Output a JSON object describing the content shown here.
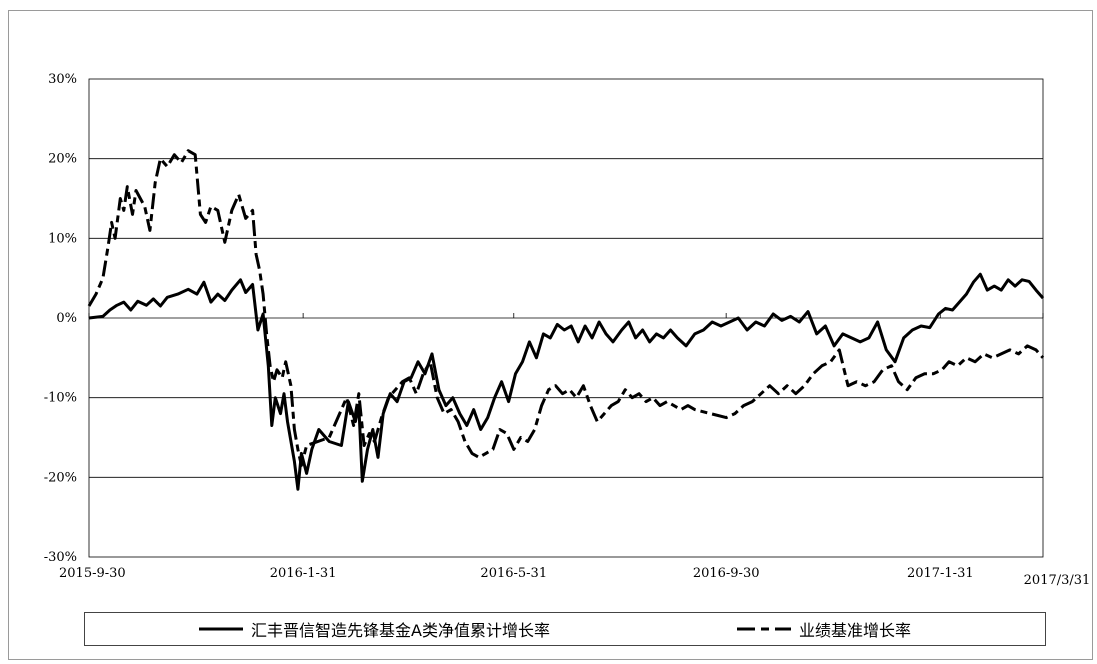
{
  "chart_data": {
    "type": "line",
    "y_ticks": [
      "30%",
      "20%",
      "10%",
      "0%",
      "-10%",
      "-20%",
      "-30%"
    ],
    "y_values": [
      30,
      20,
      10,
      0,
      -10,
      -20,
      -30
    ],
    "ylim": [
      -30,
      30
    ],
    "x_ticks": [
      "2015-9-30",
      "2016-1-31",
      "2016-5-31",
      "2016-9-30",
      "2017-1-31",
      "2017/3/31"
    ],
    "x_tick_dates": [
      "2015-09-30",
      "2016-01-31",
      "2016-05-31",
      "2016-09-30",
      "2017-01-31",
      "2017-03-31"
    ],
    "xlim": [
      "2015-09-30",
      "2017-03-31"
    ],
    "grid": "horizontal",
    "legend_position": "bottom",
    "series": [
      {
        "name": "汇丰晋信智造先锋基金A类净值累计增长率",
        "style": "solid",
        "color": "#000000",
        "points": [
          [
            "2015-09-30",
            0.0
          ],
          [
            "2015-10-08",
            0.2
          ],
          [
            "2015-10-12",
            1.0
          ],
          [
            "2015-10-16",
            1.6
          ],
          [
            "2015-10-20",
            2.0
          ],
          [
            "2015-10-24",
            1.0
          ],
          [
            "2015-10-28",
            2.1
          ],
          [
            "2015-11-02",
            1.6
          ],
          [
            "2015-11-06",
            2.4
          ],
          [
            "2015-11-10",
            1.5
          ],
          [
            "2015-11-14",
            2.6
          ],
          [
            "2015-11-20",
            3.0
          ],
          [
            "2015-11-26",
            3.6
          ],
          [
            "2015-12-01",
            3.0
          ],
          [
            "2015-12-05",
            4.5
          ],
          [
            "2015-12-09",
            2.0
          ],
          [
            "2015-12-13",
            3.0
          ],
          [
            "2015-12-17",
            2.2
          ],
          [
            "2015-12-21",
            3.5
          ],
          [
            "2015-12-26",
            4.8
          ],
          [
            "2015-12-29",
            3.2
          ],
          [
            "2016-01-02",
            4.2
          ],
          [
            "2016-01-05",
            -1.5
          ],
          [
            "2016-01-08",
            0.5
          ],
          [
            "2016-01-11",
            -6.0
          ],
          [
            "2016-01-13",
            -13.5
          ],
          [
            "2016-01-15",
            -10.0
          ],
          [
            "2016-01-18",
            -12.0
          ],
          [
            "2016-01-20",
            -9.5
          ],
          [
            "2016-01-22",
            -13.0
          ],
          [
            "2016-01-26",
            -18.0
          ],
          [
            "2016-01-28",
            -21.5
          ],
          [
            "2016-01-30",
            -17.0
          ],
          [
            "2016-02-02",
            -19.5
          ],
          [
            "2016-02-05",
            -16.5
          ],
          [
            "2016-02-09",
            -14.0
          ],
          [
            "2016-02-15",
            -15.5
          ],
          [
            "2016-02-22",
            -16.0
          ],
          [
            "2016-02-26",
            -10.5
          ],
          [
            "2016-03-01",
            -13.0
          ],
          [
            "2016-03-03",
            -11.0
          ],
          [
            "2016-03-05",
            -20.5
          ],
          [
            "2016-03-08",
            -16.5
          ],
          [
            "2016-03-11",
            -14.0
          ],
          [
            "2016-03-14",
            -17.5
          ],
          [
            "2016-03-17",
            -12.0
          ],
          [
            "2016-03-21",
            -9.5
          ],
          [
            "2016-03-25",
            -10.5
          ],
          [
            "2016-03-29",
            -8.0
          ],
          [
            "2016-04-02",
            -7.5
          ],
          [
            "2016-04-06",
            -5.5
          ],
          [
            "2016-04-10",
            -7.0
          ],
          [
            "2016-04-14",
            -4.5
          ],
          [
            "2016-04-18",
            -9.0
          ],
          [
            "2016-04-22",
            -11.0
          ],
          [
            "2016-04-26",
            -10.0
          ],
          [
            "2016-04-30",
            -12.0
          ],
          [
            "2016-05-04",
            -13.5
          ],
          [
            "2016-05-08",
            -11.5
          ],
          [
            "2016-05-12",
            -14.0
          ],
          [
            "2016-05-16",
            -12.5
          ],
          [
            "2016-05-20",
            -10.0
          ],
          [
            "2016-05-24",
            -8.0
          ],
          [
            "2016-05-28",
            -10.5
          ],
          [
            "2016-06-01",
            -7.0
          ],
          [
            "2016-06-05",
            -5.5
          ],
          [
            "2016-06-09",
            -3.0
          ],
          [
            "2016-06-13",
            -5.0
          ],
          [
            "2016-06-17",
            -2.0
          ],
          [
            "2016-06-21",
            -2.5
          ],
          [
            "2016-06-25",
            -0.8
          ],
          [
            "2016-06-29",
            -1.5
          ],
          [
            "2016-07-03",
            -1.0
          ],
          [
            "2016-07-07",
            -3.0
          ],
          [
            "2016-07-11",
            -1.0
          ],
          [
            "2016-07-15",
            -2.5
          ],
          [
            "2016-07-19",
            -0.5
          ],
          [
            "2016-07-23",
            -2.0
          ],
          [
            "2016-07-27",
            -3.0
          ],
          [
            "2016-08-01",
            -1.5
          ],
          [
            "2016-08-05",
            -0.5
          ],
          [
            "2016-08-09",
            -2.5
          ],
          [
            "2016-08-13",
            -1.5
          ],
          [
            "2016-08-17",
            -3.0
          ],
          [
            "2016-08-21",
            -2.0
          ],
          [
            "2016-08-25",
            -2.5
          ],
          [
            "2016-08-29",
            -1.5
          ],
          [
            "2016-09-02",
            -2.5
          ],
          [
            "2016-09-07",
            -3.5
          ],
          [
            "2016-09-12",
            -2.0
          ],
          [
            "2016-09-17",
            -1.5
          ],
          [
            "2016-09-22",
            -0.5
          ],
          [
            "2016-09-27",
            -1.0
          ],
          [
            "2016-10-02",
            -0.5
          ],
          [
            "2016-10-07",
            0.0
          ],
          [
            "2016-10-12",
            -1.5
          ],
          [
            "2016-10-17",
            -0.5
          ],
          [
            "2016-10-22",
            -1.0
          ],
          [
            "2016-10-27",
            0.5
          ],
          [
            "2016-11-01",
            -0.3
          ],
          [
            "2016-11-06",
            0.2
          ],
          [
            "2016-11-11",
            -0.5
          ],
          [
            "2016-11-16",
            0.8
          ],
          [
            "2016-11-21",
            -2.0
          ],
          [
            "2016-11-26",
            -1.0
          ],
          [
            "2016-12-01",
            -3.5
          ],
          [
            "2016-12-06",
            -2.0
          ],
          [
            "2016-12-11",
            -2.5
          ],
          [
            "2016-12-16",
            -3.0
          ],
          [
            "2016-12-21",
            -2.5
          ],
          [
            "2016-12-26",
            -0.5
          ],
          [
            "2016-12-31",
            -4.0
          ],
          [
            "2017-01-05",
            -5.5
          ],
          [
            "2017-01-10",
            -2.5
          ],
          [
            "2017-01-15",
            -1.5
          ],
          [
            "2017-01-20",
            -1.0
          ],
          [
            "2017-01-25",
            -1.2
          ],
          [
            "2017-01-30",
            0.5
          ],
          [
            "2017-02-03",
            1.2
          ],
          [
            "2017-02-07",
            1.0
          ],
          [
            "2017-02-11",
            2.0
          ],
          [
            "2017-02-15",
            3.0
          ],
          [
            "2017-02-19",
            4.5
          ],
          [
            "2017-02-23",
            5.5
          ],
          [
            "2017-02-27",
            3.5
          ],
          [
            "2017-03-03",
            4.0
          ],
          [
            "2017-03-07",
            3.5
          ],
          [
            "2017-03-11",
            4.8
          ],
          [
            "2017-03-15",
            4.0
          ],
          [
            "2017-03-19",
            4.8
          ],
          [
            "2017-03-23",
            4.6
          ],
          [
            "2017-03-27",
            3.5
          ],
          [
            "2017-03-31",
            2.5
          ]
        ]
      },
      {
        "name": "业绩基准增长率",
        "style": "dashed",
        "color": "#000000",
        "points": [
          [
            "2015-09-30",
            1.5
          ],
          [
            "2015-10-04",
            3.0
          ],
          [
            "2015-10-08",
            5.0
          ],
          [
            "2015-10-11",
            9.0
          ],
          [
            "2015-10-13",
            12.0
          ],
          [
            "2015-10-15",
            10.0
          ],
          [
            "2015-10-18",
            15.0
          ],
          [
            "2015-10-20",
            13.5
          ],
          [
            "2015-10-22",
            16.5
          ],
          [
            "2015-10-25",
            13.0
          ],
          [
            "2015-10-27",
            16.0
          ],
          [
            "2015-11-01",
            14.0
          ],
          [
            "2015-11-04",
            11.0
          ],
          [
            "2015-11-07",
            17.0
          ],
          [
            "2015-11-10",
            20.0
          ],
          [
            "2015-11-14",
            19.0
          ],
          [
            "2015-11-18",
            20.5
          ],
          [
            "2015-11-22",
            19.5
          ],
          [
            "2015-11-26",
            21.0
          ],
          [
            "2015-11-30",
            20.5
          ],
          [
            "2015-12-03",
            13.0
          ],
          [
            "2015-12-06",
            12.0
          ],
          [
            "2015-12-09",
            14.0
          ],
          [
            "2015-12-13",
            13.5
          ],
          [
            "2015-12-17",
            9.5
          ],
          [
            "2015-12-21",
            13.5
          ],
          [
            "2015-12-25",
            15.5
          ],
          [
            "2015-12-29",
            12.5
          ],
          [
            "2016-01-02",
            13.5
          ],
          [
            "2016-01-04",
            8.0
          ],
          [
            "2016-01-06",
            6.0
          ],
          [
            "2016-01-08",
            3.0
          ],
          [
            "2016-01-10",
            -2.0
          ],
          [
            "2016-01-12",
            -6.0
          ],
          [
            "2016-01-14",
            -8.0
          ],
          [
            "2016-01-16",
            -6.5
          ],
          [
            "2016-01-19",
            -7.5
          ],
          [
            "2016-01-21",
            -5.5
          ],
          [
            "2016-01-24",
            -8.5
          ],
          [
            "2016-01-26",
            -14.0
          ],
          [
            "2016-01-28",
            -16.5
          ],
          [
            "2016-01-30",
            -18.5
          ],
          [
            "2016-02-02",
            -16.0
          ],
          [
            "2016-02-15",
            -15.0
          ],
          [
            "2016-02-25",
            -10.0
          ],
          [
            "2016-02-29",
            -13.5
          ],
          [
            "2016-03-03",
            -9.5
          ],
          [
            "2016-03-06",
            -16.0
          ],
          [
            "2016-03-09",
            -14.5
          ],
          [
            "2016-03-12",
            -15.5
          ],
          [
            "2016-03-16",
            -12.5
          ],
          [
            "2016-03-20",
            -10.0
          ],
          [
            "2016-03-24",
            -9.0
          ],
          [
            "2016-03-28",
            -8.0
          ],
          [
            "2016-04-01",
            -7.5
          ],
          [
            "2016-04-05",
            -9.5
          ],
          [
            "2016-04-09",
            -7.0
          ],
          [
            "2016-04-13",
            -5.5
          ],
          [
            "2016-04-17",
            -10.0
          ],
          [
            "2016-04-21",
            -12.0
          ],
          [
            "2016-04-25",
            -11.5
          ],
          [
            "2016-04-29",
            -13.0
          ],
          [
            "2016-05-03",
            -15.5
          ],
          [
            "2016-05-07",
            -17.0
          ],
          [
            "2016-05-11",
            -17.5
          ],
          [
            "2016-05-15",
            -17.0
          ],
          [
            "2016-05-19",
            -16.5
          ],
          [
            "2016-05-23",
            -14.0
          ],
          [
            "2016-05-27",
            -14.5
          ],
          [
            "2016-05-31",
            -16.5
          ],
          [
            "2016-06-04",
            -15.0
          ],
          [
            "2016-06-08",
            -15.5
          ],
          [
            "2016-06-12",
            -14.0
          ],
          [
            "2016-06-16",
            -11.0
          ],
          [
            "2016-06-20",
            -9.0
          ],
          [
            "2016-06-24",
            -8.5
          ],
          [
            "2016-06-28",
            -9.5
          ],
          [
            "2016-07-02",
            -9.0
          ],
          [
            "2016-07-06",
            -10.0
          ],
          [
            "2016-07-10",
            -8.5
          ],
          [
            "2016-07-14",
            -11.0
          ],
          [
            "2016-07-18",
            -13.0
          ],
          [
            "2016-07-22",
            -12.0
          ],
          [
            "2016-07-26",
            -11.0
          ],
          [
            "2016-07-30",
            -10.5
          ],
          [
            "2016-08-03",
            -9.0
          ],
          [
            "2016-08-07",
            -10.0
          ],
          [
            "2016-08-11",
            -9.5
          ],
          [
            "2016-08-15",
            -10.5
          ],
          [
            "2016-08-19",
            -10.0
          ],
          [
            "2016-08-23",
            -11.0
          ],
          [
            "2016-08-27",
            -10.5
          ],
          [
            "2016-08-31",
            -11.0
          ],
          [
            "2016-09-04",
            -11.5
          ],
          [
            "2016-09-08",
            -11.0
          ],
          [
            "2016-09-12",
            -11.5
          ],
          [
            "2016-09-30",
            -12.5
          ],
          [
            "2016-10-05",
            -12.0
          ],
          [
            "2016-10-10",
            -11.0
          ],
          [
            "2016-10-15",
            -10.5
          ],
          [
            "2016-10-20",
            -9.5
          ],
          [
            "2016-10-25",
            -8.5
          ],
          [
            "2016-10-30",
            -9.5
          ],
          [
            "2016-11-04",
            -8.5
          ],
          [
            "2016-11-09",
            -9.5
          ],
          [
            "2016-11-14",
            -8.5
          ],
          [
            "2016-11-19",
            -7.0
          ],
          [
            "2016-11-24",
            -6.0
          ],
          [
            "2016-11-29",
            -5.5
          ],
          [
            "2016-12-04",
            -4.0
          ],
          [
            "2016-12-09",
            -8.5
          ],
          [
            "2016-12-14",
            -8.0
          ],
          [
            "2016-12-19",
            -8.5
          ],
          [
            "2016-12-24",
            -8.0
          ],
          [
            "2016-12-29",
            -6.5
          ],
          [
            "2017-01-03",
            -6.0
          ],
          [
            "2017-01-07",
            -8.0
          ],
          [
            "2017-01-12",
            -9.0
          ],
          [
            "2017-01-17",
            -7.5
          ],
          [
            "2017-01-22",
            -7.0
          ],
          [
            "2017-01-27",
            -7.0
          ],
          [
            "2017-02-01",
            -6.5
          ],
          [
            "2017-02-05",
            -5.5
          ],
          [
            "2017-02-10",
            -6.0
          ],
          [
            "2017-02-15",
            -5.0
          ],
          [
            "2017-02-20",
            -5.5
          ],
          [
            "2017-02-25",
            -4.5
          ],
          [
            "2017-03-02",
            -5.0
          ],
          [
            "2017-03-07",
            -4.5
          ],
          [
            "2017-03-12",
            -4.0
          ],
          [
            "2017-03-17",
            -4.5
          ],
          [
            "2017-03-22",
            -3.5
          ],
          [
            "2017-03-27",
            -4.0
          ],
          [
            "2017-03-31",
            -5.0
          ]
        ]
      }
    ]
  }
}
